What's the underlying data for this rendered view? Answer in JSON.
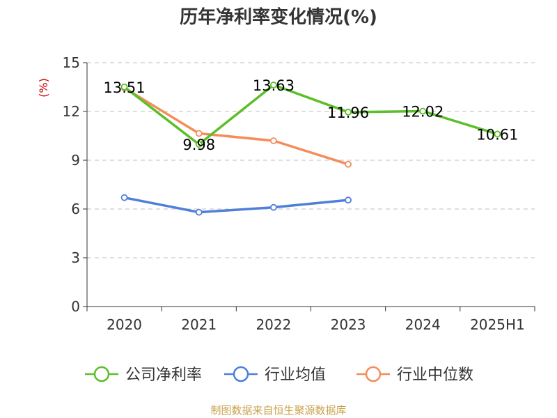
{
  "title": "历年净利率变化情况(%)",
  "footer": "制图数据来自恒生聚源数据库",
  "colors": {
    "company": "#5cbf2a",
    "industry_avg": "#4f7fd9",
    "industry_median": "#f58c5a",
    "grid": "#cccccc",
    "axis": "#333333",
    "unit": "#cc0000",
    "footer": "#c8a24a"
  },
  "chart_data": {
    "type": "line",
    "title": "历年净利率变化情况(%)",
    "ylabel": "(%)",
    "xlabel": "",
    "categories": [
      "2020",
      "2021",
      "2022",
      "2023",
      "2024",
      "2025H1"
    ],
    "yticks": [
      "0",
      "3",
      "6",
      "9",
      "12",
      "15"
    ],
    "ylim": [
      0,
      15
    ],
    "grid": true,
    "legend_position": "bottom",
    "series": [
      {
        "name": "公司净利率",
        "values": [
          13.51,
          9.98,
          13.63,
          11.96,
          12.02,
          10.61
        ],
        "labels": [
          "13.51",
          "9.98",
          "13.63",
          "11.96",
          "12.02",
          "10.61"
        ],
        "color": "#5cbf2a"
      },
      {
        "name": "行业均值",
        "values": [
          6.7,
          5.8,
          6.1,
          6.55,
          null,
          null
        ],
        "color": "#4f7fd9"
      },
      {
        "name": "行业中位数",
        "values": [
          13.45,
          10.65,
          10.2,
          8.75,
          null,
          null
        ],
        "color": "#f58c5a"
      }
    ]
  }
}
